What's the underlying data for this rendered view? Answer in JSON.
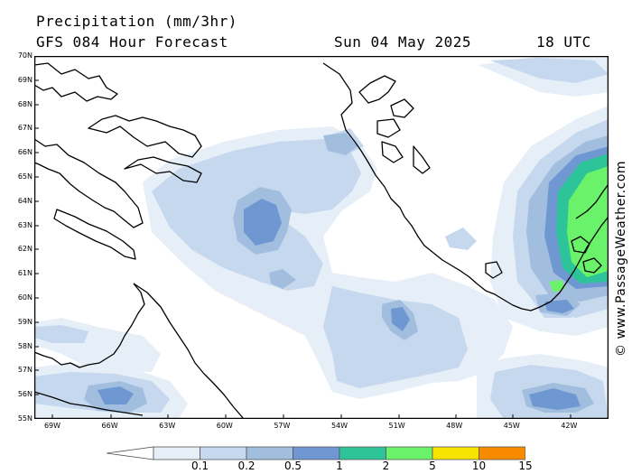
{
  "header": {
    "title": "Precipitation (mm/3hr)",
    "subtitle": "GFS 084 Hour Forecast",
    "datetime": "Sun 04 May 2025",
    "hour_utc": "18 UTC"
  },
  "watermark": "© www.PassageWeather.com",
  "lat_labels": [
    "70N",
    "69N",
    "68N",
    "67N",
    "66N",
    "65N",
    "64N",
    "63N",
    "62N",
    "61N",
    "60N",
    "59N",
    "58N",
    "57N",
    "56N",
    "55N"
  ],
  "lon_labels": [
    "69W",
    "66W",
    "63W",
    "60W",
    "57W",
    "54W",
    "51W",
    "48W",
    "45W",
    "42W"
  ],
  "legend": {
    "labels": [
      "0.1",
      "0.2",
      "0.5",
      "1",
      "2",
      "5",
      "10",
      "15"
    ],
    "colors": [
      "#e6eef8",
      "#c6d8ee",
      "#a2bedf",
      "#6f98d2",
      "#2ec49a",
      "#6af26a",
      "#f6e400",
      "#f88a00",
      "#e63a3a"
    ]
  },
  "colors": {
    "land_outline": "#000000",
    "frame": "#000000"
  }
}
